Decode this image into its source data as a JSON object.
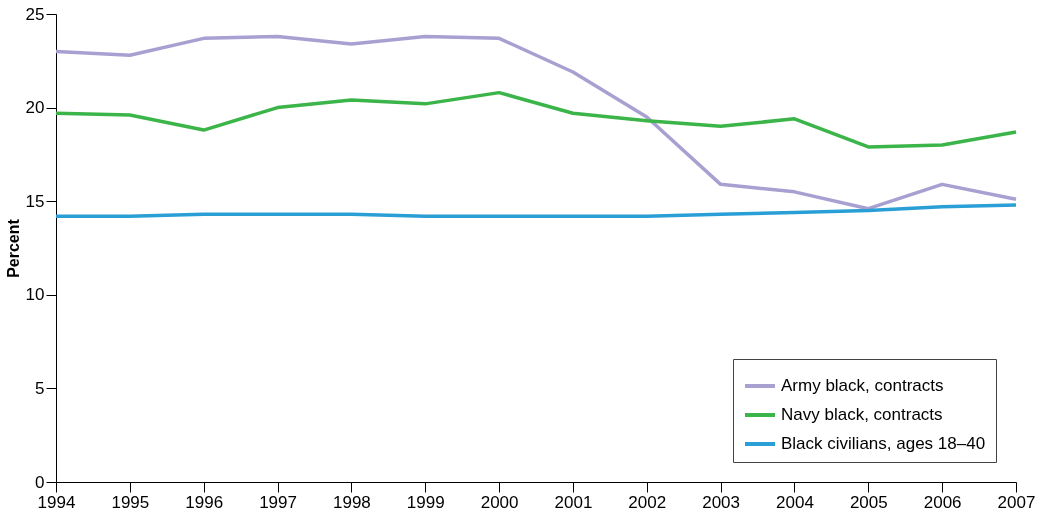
{
  "chart_data": {
    "type": "line",
    "ylabel": "Percent",
    "x": [
      1994,
      1995,
      1996,
      1997,
      1998,
      1999,
      2000,
      2001,
      2002,
      2003,
      2004,
      2005,
      2006,
      2007
    ],
    "xlim": [
      1994,
      2007
    ],
    "xticks": [
      1994,
      1995,
      1996,
      1997,
      1998,
      1999,
      2000,
      2001,
      2002,
      2003,
      2004,
      2005,
      2006,
      2007
    ],
    "ylim": [
      0,
      25
    ],
    "yticks": [
      0,
      5,
      10,
      15,
      20,
      25
    ],
    "grid": false,
    "legend": "bottom right",
    "marker": "none",
    "line_style": "solid",
    "series": [
      {
        "name": "Army black, contracts",
        "color": "#a9a0d2",
        "values": [
          23.0,
          22.8,
          23.7,
          23.8,
          23.4,
          23.8,
          23.7,
          21.9,
          19.5,
          15.9,
          15.5,
          14.6,
          15.9,
          15.1
        ]
      },
      {
        "name": "Navy black, contracts",
        "color": "#3bb54a",
        "values": [
          19.7,
          19.6,
          18.8,
          20.0,
          20.4,
          20.2,
          20.8,
          19.7,
          19.3,
          19.0,
          19.4,
          17.9,
          18.0,
          18.7
        ]
      },
      {
        "name": "Black civilians, ages 18–40",
        "color": "#2a9fd6",
        "values": [
          14.2,
          14.2,
          14.3,
          14.3,
          14.3,
          14.2,
          14.2,
          14.2,
          14.2,
          14.3,
          14.4,
          14.5,
          14.7,
          14.8
        ]
      }
    ]
  }
}
